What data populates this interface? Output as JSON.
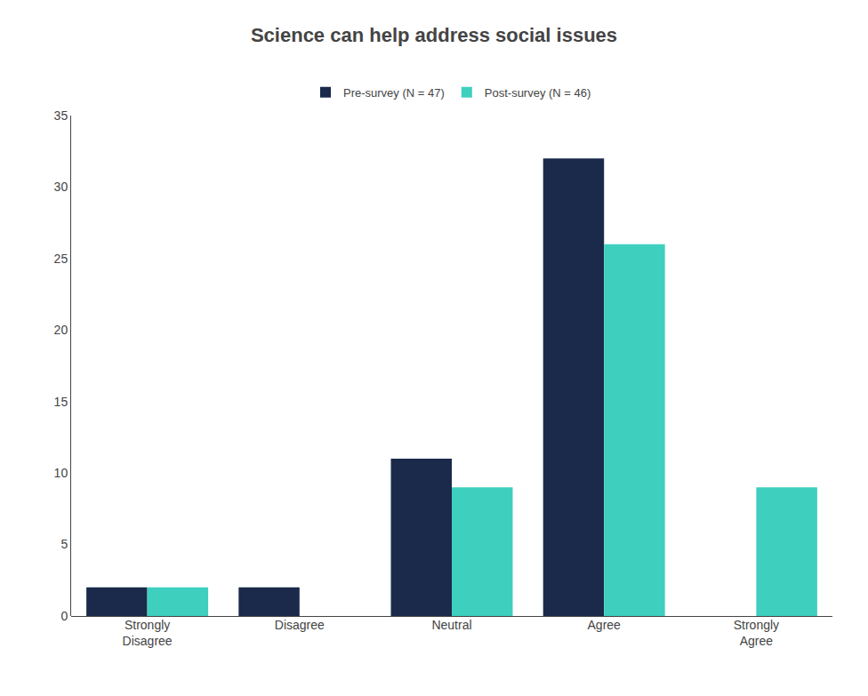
{
  "chart_data": {
    "type": "bar",
    "title": "Science can help address social issues",
    "categories": [
      "Strongly\nDisagree",
      "Disagree",
      "Neutral",
      "Agree",
      "Strongly\nAgree"
    ],
    "series": [
      {
        "name": "Pre-survey (N = 47)",
        "color": "#1b2a4a",
        "values": [
          2,
          2,
          11,
          32,
          0
        ]
      },
      {
        "name": "Post-survey (N = 46)",
        "color": "#3ecfbf",
        "values": [
          2,
          0,
          9,
          26,
          9
        ]
      }
    ],
    "ylim": [
      0,
      35
    ],
    "yticks": [
      0,
      5,
      10,
      15,
      20,
      25,
      30,
      35
    ],
    "grid": false,
    "legend": "top"
  }
}
